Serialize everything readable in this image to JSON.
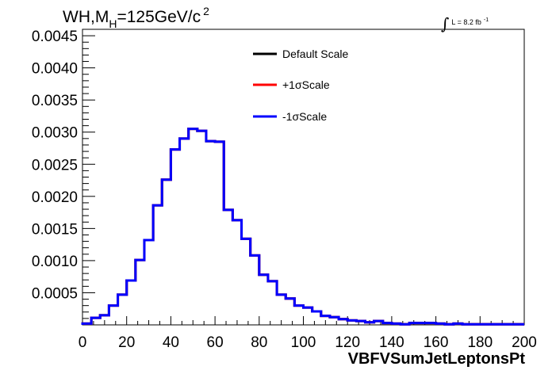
{
  "chart_data": {
    "type": "line",
    "title": {
      "prefix": "WH,M",
      "subscript": "H",
      "suffix": "=125GeV/c",
      "superscript": "2"
    },
    "luminosity": {
      "integral_symbol": "∫",
      "text": "L = 8.2 fb",
      "superscript": "-1"
    },
    "xlabel": "VBFVSumJetLeptonsPt",
    "ylabel": "",
    "xlim": [
      0,
      200
    ],
    "ylim": [
      0,
      0.0046
    ],
    "x_ticks": [
      0,
      20,
      40,
      60,
      80,
      100,
      120,
      140,
      160,
      180,
      200
    ],
    "x_tick_labels": [
      "0",
      "20",
      "40",
      "60",
      "80",
      "100",
      "120",
      "140",
      "160",
      "180",
      "200"
    ],
    "y_ticks": [
      0.0005,
      0.001,
      0.0015,
      0.002,
      0.0025,
      0.003,
      0.0035,
      0.004,
      0.0045
    ],
    "y_tick_labels": [
      "0.0005",
      "0.0010",
      "0.0015",
      "0.0020",
      "0.0025",
      "0.0030",
      "0.0035",
      "0.0040",
      "0.0045"
    ],
    "grid": false,
    "legend_position": "top-center",
    "bin_edges": [
      0,
      4,
      8,
      12,
      16,
      20,
      24,
      28,
      32,
      36,
      40,
      44,
      48,
      52,
      56,
      60,
      64,
      68,
      72,
      76,
      80,
      84,
      88,
      92,
      96,
      100,
      104,
      108,
      112,
      116,
      120,
      124,
      128,
      132,
      136,
      140,
      144,
      148,
      152,
      156,
      160,
      164,
      168,
      172,
      176,
      180,
      184,
      188,
      192,
      196,
      200
    ],
    "series": [
      {
        "name": "Default Scale",
        "color": "#000000",
        "values": [
          2e-05,
          0.00011,
          0.00015,
          0.0003,
          0.00047,
          0.00069,
          0.00101,
          0.00132,
          0.00186,
          0.00226,
          0.00273,
          0.0029,
          0.00305,
          0.00302,
          0.00286,
          0.00285,
          0.00179,
          0.00163,
          0.00134,
          0.00108,
          0.00078,
          0.00068,
          0.00047,
          0.00041,
          0.0003,
          0.00027,
          0.00021,
          0.00014,
          0.00012,
          9e-05,
          7e-05,
          6e-05,
          4e-05,
          6e-05,
          3e-05,
          2e-05,
          1e-05,
          3e-05,
          3e-05,
          3e-05,
          2e-05,
          1e-05,
          2e-05,
          1e-05,
          1e-05,
          1e-05,
          1e-05,
          1e-05,
          1e-05,
          1e-05
        ]
      },
      {
        "name": "+1σScale",
        "color": "#ff0000",
        "values": [
          2e-05,
          0.00011,
          0.00015,
          0.0003,
          0.00047,
          0.00069,
          0.00101,
          0.00132,
          0.00186,
          0.00226,
          0.00273,
          0.0029,
          0.00305,
          0.00302,
          0.00286,
          0.00285,
          0.00179,
          0.00163,
          0.00134,
          0.00108,
          0.00078,
          0.00068,
          0.00047,
          0.00041,
          0.0003,
          0.00027,
          0.00021,
          0.00014,
          0.00012,
          9e-05,
          7e-05,
          6e-05,
          4e-05,
          6e-05,
          3e-05,
          2e-05,
          1e-05,
          3e-05,
          3e-05,
          3e-05,
          2e-05,
          1e-05,
          2e-05,
          1e-05,
          1e-05,
          1e-05,
          1e-05,
          1e-05,
          1e-05,
          1e-05
        ]
      },
      {
        "name": "-1σScale",
        "color": "#0000ff",
        "values": [
          2e-05,
          0.00011,
          0.00015,
          0.0003,
          0.00047,
          0.00069,
          0.00101,
          0.00132,
          0.00186,
          0.00226,
          0.00273,
          0.0029,
          0.00305,
          0.00302,
          0.00286,
          0.00285,
          0.00179,
          0.00163,
          0.00134,
          0.00108,
          0.00078,
          0.00068,
          0.00047,
          0.00041,
          0.0003,
          0.00027,
          0.00021,
          0.00014,
          0.00012,
          9e-05,
          7e-05,
          6e-05,
          4e-05,
          6e-05,
          3e-05,
          2e-05,
          1e-05,
          3e-05,
          3e-05,
          3e-05,
          2e-05,
          1e-05,
          2e-05,
          1e-05,
          1e-05,
          1e-05,
          1e-05,
          1e-05,
          1e-05,
          1e-05
        ]
      }
    ]
  }
}
